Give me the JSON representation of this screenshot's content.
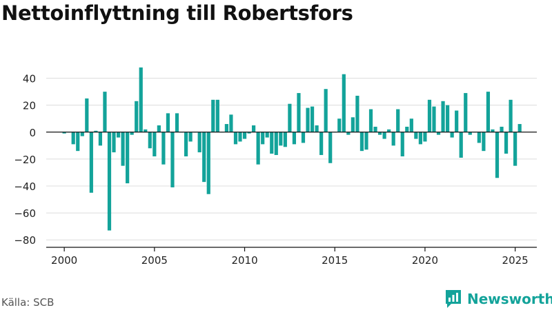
{
  "title": "Nettoinflyttning till Robertsfors",
  "source": "Källa: SCB",
  "brand": {
    "name": "Newsworthy",
    "icon": "newsworthy-logo-icon"
  },
  "colors": {
    "bar": "#13a39a",
    "grid": "#dcdcdc",
    "axis": "#111111",
    "brand": "#13a39a"
  },
  "chart_data": {
    "type": "bar",
    "title": "Nettoinflyttning till Robertsfors",
    "xlabel": "",
    "ylabel": "",
    "xlim": [
      1999.0,
      2026.2
    ],
    "ylim": [
      -85,
      50
    ],
    "xticks": [
      2000,
      2005,
      2010,
      2015,
      2020,
      2025
    ],
    "yticks": [
      40,
      20,
      0,
      -20,
      -40,
      -60,
      -80
    ],
    "ytick_labels": [
      "40",
      "20",
      "0",
      "−20",
      "−40",
      "−60",
      "−80"
    ],
    "grid": true,
    "legend": "none",
    "x": [
      2000.0,
      2000.25,
      2000.5,
      2000.75,
      2001.0,
      2001.25,
      2001.5,
      2001.75,
      2002.0,
      2002.25,
      2002.5,
      2002.75,
      2003.0,
      2003.25,
      2003.5,
      2003.75,
      2004.0,
      2004.25,
      2004.5,
      2004.75,
      2005.0,
      2005.25,
      2005.5,
      2005.75,
      2006.0,
      2006.25,
      2006.5,
      2006.75,
      2007.0,
      2007.25,
      2007.5,
      2007.75,
      2008.0,
      2008.25,
      2008.5,
      2008.75,
      2009.0,
      2009.25,
      2009.5,
      2009.75,
      2010.0,
      2010.25,
      2010.5,
      2010.75,
      2011.0,
      2011.25,
      2011.5,
      2011.75,
      2012.0,
      2012.25,
      2012.5,
      2012.75,
      2013.0,
      2013.25,
      2013.5,
      2013.75,
      2014.0,
      2014.25,
      2014.5,
      2014.75,
      2015.0,
      2015.25,
      2015.5,
      2015.75,
      2016.0,
      2016.25,
      2016.5,
      2016.75,
      2017.0,
      2017.25,
      2017.5,
      2017.75,
      2018.0,
      2018.25,
      2018.5,
      2018.75,
      2019.0,
      2019.25,
      2019.5,
      2019.75,
      2020.0,
      2020.25,
      2020.5,
      2020.75,
      2021.0,
      2021.25,
      2021.5,
      2021.75,
      2022.0,
      2022.25,
      2022.5,
      2022.75,
      2023.0,
      2023.25,
      2023.5,
      2023.75,
      2024.0,
      2024.25,
      2024.5,
      2024.75,
      2025.0,
      2025.25
    ],
    "values": [
      -1,
      0,
      -9,
      -14,
      -3,
      25,
      -45,
      1,
      -10,
      30,
      -73,
      -15,
      -4,
      -25,
      -38,
      -2,
      23,
      48,
      2,
      -12,
      -18,
      5,
      -24,
      14,
      -41,
      14,
      0,
      -18,
      -7,
      0,
      -15,
      -37,
      -46,
      24,
      24,
      0,
      6,
      13,
      -9,
      -7,
      -5,
      -1,
      5,
      -24,
      -9,
      -4,
      -16,
      -17,
      -10,
      -11,
      21,
      -9,
      29,
      -8,
      18,
      19,
      5,
      -17,
      32,
      -23,
      0,
      10,
      43,
      -2,
      11,
      27,
      -14,
      -13,
      17,
      4,
      -2,
      -5,
      2,
      -10,
      17,
      -18,
      4,
      10,
      -5,
      -9,
      -7,
      24,
      19,
      -2,
      23,
      20,
      -4,
      16,
      -19,
      29,
      -2,
      0,
      -8,
      -14,
      30,
      2,
      -34,
      4,
      -16,
      24,
      -25,
      6
    ]
  }
}
